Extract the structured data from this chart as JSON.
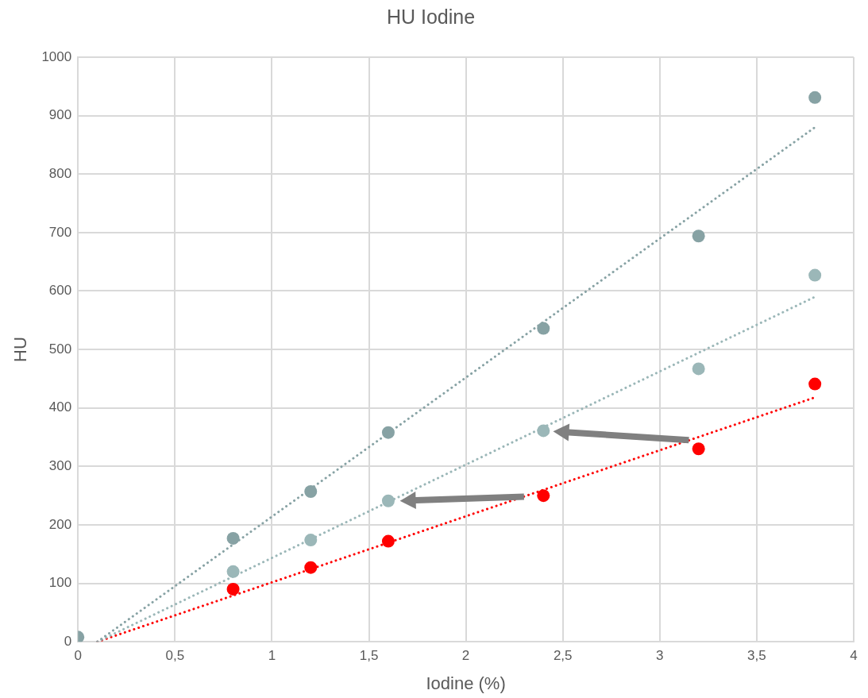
{
  "chart_data": {
    "type": "scatter",
    "title": "HU Iodine",
    "xlabel": "Iodine (%)",
    "ylabel": "HU",
    "xlim": [
      0,
      4
    ],
    "xticks": [
      {
        "value": 0,
        "label": "0"
      },
      {
        "value": 0.5,
        "label": "0,5"
      },
      {
        "value": 1,
        "label": "1"
      },
      {
        "value": 1.5,
        "label": "1,5"
      },
      {
        "value": 2,
        "label": "2"
      },
      {
        "value": 2.5,
        "label": "2,5"
      },
      {
        "value": 3,
        "label": "3"
      },
      {
        "value": 3.5,
        "label": "3,5"
      },
      {
        "value": 4,
        "label": "4"
      }
    ],
    "ylim": [
      0,
      1000
    ],
    "yticks": [
      0,
      100,
      200,
      300,
      400,
      500,
      600,
      700,
      800,
      900,
      1000
    ],
    "grid": true,
    "legend": false,
    "marker": "circle",
    "series": [
      {
        "color": "#87a2a4",
        "x": [
          0,
          0.8,
          1.2,
          1.6,
          2.4,
          3.2,
          3.8
        ],
        "values": [
          8,
          177,
          257,
          358,
          536,
          694,
          931
        ]
      },
      {
        "color": "#9bb7b8",
        "x": [
          0.8,
          1.2,
          1.6,
          2.4,
          3.2,
          3.8
        ],
        "values": [
          120,
          174,
          241,
          361,
          467,
          627
        ]
      },
      {
        "color": "#ff0000",
        "x": [
          0.8,
          1.2,
          1.6,
          2.4,
          3.2,
          3.8
        ],
        "values": [
          90,
          127,
          172,
          250,
          330,
          441
        ]
      },
      {
        "type": "line",
        "color": "#87a2a4",
        "line_style": "dotted",
        "marker": "none",
        "x": [
          0.1,
          3.8
        ],
        "values": [
          0,
          880
        ]
      },
      {
        "type": "line",
        "color": "#9bb7b8",
        "line_style": "dotted",
        "marker": "none",
        "x": [
          0.1,
          3.8
        ],
        "values": [
          0,
          590
        ]
      },
      {
        "type": "line",
        "color": "#ff0000",
        "line_style": "dotted",
        "marker": "none",
        "x": [
          0.1,
          3.8
        ],
        "values": [
          0,
          418
        ]
      }
    ]
  }
}
